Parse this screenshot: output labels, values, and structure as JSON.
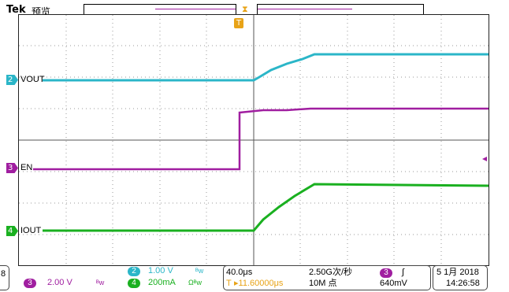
{
  "brand": "Tek",
  "mode": "预览",
  "colors": {
    "ch1": "#2bb6c8",
    "ch2": "#a01ea0",
    "ch3": "#1ab020",
    "trigger": "#e8a317",
    "grid": "#888888"
  },
  "screen": {
    "channel_labels": {
      "vout": "VOUT",
      "en": "EN",
      "iout": "IOUT"
    },
    "markers": {
      "vout": "2",
      "en": "3",
      "iout": "4"
    },
    "trigger_marker": "T"
  },
  "bottom": {
    "left_partial": "8",
    "ch3_scale": "2.00 V",
    "ch3_coupling": "ᴮw",
    "ch2_badge": "2",
    "ch2_scale": "1.00 V",
    "ch2_coupling": "ᴮw",
    "ch4_badge": "4",
    "ch4_scale": "200mA",
    "ch4_coupling": "Ωᴮw",
    "ch3_badge": "3",
    "timebase": "40.0μs",
    "trigger_pos": "▸11.60000μs",
    "sample_rate": "2.50G次/秒",
    "record_length": "10M 点",
    "trig_badge": "3",
    "trig_slope": "∫",
    "trig_level": "640mV",
    "date": "5 1月 2018",
    "time": "14:26:58"
  }
}
